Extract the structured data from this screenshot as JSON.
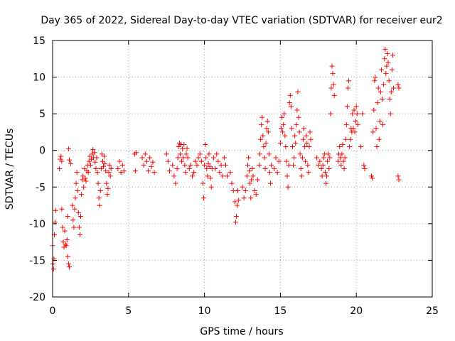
{
  "chart_data": {
    "type": "scatter",
    "title": "Day 365 of 2022, Sidereal Day-to-day VTEC variation (SDTVAR) for receiver eur2",
    "xlabel": "GPS time / hours",
    "ylabel": "SDTVAR / TECUs",
    "xlim": [
      0,
      25
    ],
    "ylim": [
      -20,
      15
    ],
    "x_ticks": [
      0,
      5,
      10,
      15,
      20,
      25
    ],
    "y_ticks": [
      -20,
      -15,
      -10,
      -5,
      0,
      5,
      10,
      15
    ],
    "x_tick_labels": [
      "0",
      "5",
      "10",
      "15",
      "20",
      "25"
    ],
    "y_tick_labels": [
      "-20",
      "-15",
      "-10",
      "-5",
      "0",
      "5",
      "10",
      "15"
    ],
    "grid": true,
    "marker": "+",
    "color": "#ff0000",
    "series": [
      {
        "name": "eur2",
        "points": [
          [
            0.0,
            -13.0
          ],
          [
            0.03,
            -15.5
          ],
          [
            0.06,
            -16.2
          ],
          [
            0.09,
            -14.8
          ],
          [
            0.12,
            -11.5
          ],
          [
            0.16,
            -9.8
          ],
          [
            0.2,
            -8.2
          ],
          [
            0.45,
            -2.5
          ],
          [
            0.5,
            -1.2
          ],
          [
            0.55,
            -0.8
          ],
          [
            0.6,
            -1.5
          ],
          [
            0.6,
            -8.0
          ],
          [
            0.65,
            -10.5
          ],
          [
            0.7,
            -12.5
          ],
          [
            0.75,
            -13.2
          ],
          [
            0.8,
            -11.0
          ],
          [
            0.85,
            -12.8
          ],
          [
            0.9,
            -13.0
          ],
          [
            0.95,
            -12.2
          ],
          [
            1.0,
            -14.5
          ],
          [
            1.05,
            -15.5
          ],
          [
            1.1,
            -15.9
          ],
          [
            1.0,
            -9.0
          ],
          [
            1.05,
            0.2
          ],
          [
            1.1,
            -1.3
          ],
          [
            1.2,
            -1.8
          ],
          [
            1.3,
            -7.5
          ],
          [
            1.35,
            -9.5
          ],
          [
            1.4,
            -10.5
          ],
          [
            1.45,
            -8.0
          ],
          [
            1.5,
            -6.5
          ],
          [
            1.55,
            -4.5
          ],
          [
            1.6,
            -3.0
          ],
          [
            1.65,
            -5.5
          ],
          [
            1.7,
            -8.5
          ],
          [
            1.75,
            -10.5
          ],
          [
            1.8,
            -11.5
          ],
          [
            1.85,
            -9.0
          ],
          [
            1.9,
            -6.0
          ],
          [
            1.95,
            -4.0
          ],
          [
            2.0,
            -3.5
          ],
          [
            2.05,
            -5.0
          ],
          [
            2.1,
            -2.5
          ],
          [
            2.15,
            -3.8
          ],
          [
            2.2,
            -4.2
          ],
          [
            2.25,
            -2.8
          ],
          [
            2.3,
            -2.0
          ],
          [
            2.35,
            -3.0
          ],
          [
            2.4,
            -1.5
          ],
          [
            2.45,
            -0.8
          ],
          [
            2.5,
            -2.0
          ],
          [
            2.55,
            -1.2
          ],
          [
            2.6,
            -0.5
          ],
          [
            2.65,
            0.1
          ],
          [
            2.7,
            -1.0
          ],
          [
            2.75,
            -0.3
          ],
          [
            2.8,
            -1.6
          ],
          [
            2.85,
            -2.5
          ],
          [
            2.9,
            -1.0
          ],
          [
            2.95,
            -3.0
          ],
          [
            3.0,
            -4.5
          ],
          [
            3.05,
            -6.5
          ],
          [
            3.1,
            -7.5
          ],
          [
            3.15,
            -5.5
          ],
          [
            3.2,
            -2.5
          ],
          [
            3.25,
            -0.5
          ],
          [
            3.3,
            -1.5
          ],
          [
            3.35,
            -2.2
          ],
          [
            3.4,
            -0.8
          ],
          [
            3.45,
            -1.8
          ],
          [
            3.5,
            -2.8
          ],
          [
            3.55,
            -4.5
          ],
          [
            3.6,
            -6.0
          ],
          [
            3.65,
            -5.2
          ],
          [
            3.7,
            -3.0
          ],
          [
            3.75,
            -2.0
          ],
          [
            3.8,
            -3.5
          ],
          [
            3.85,
            -2.5
          ],
          [
            4.3,
            -2.5
          ],
          [
            4.4,
            -1.5
          ],
          [
            4.5,
            -3.0
          ],
          [
            4.6,
            -2.0
          ],
          [
            4.7,
            -2.8
          ],
          [
            5.4,
            -0.5
          ],
          [
            5.5,
            -0.3
          ],
          [
            5.45,
            -2.8
          ],
          [
            5.9,
            -1.0
          ],
          [
            6.0,
            -2.0
          ],
          [
            6.1,
            -0.5
          ],
          [
            6.2,
            -1.5
          ],
          [
            6.3,
            -2.8
          ],
          [
            6.4,
            -1.0
          ],
          [
            6.5,
            -2.2
          ],
          [
            6.6,
            -1.6
          ],
          [
            6.7,
            -3.0
          ],
          [
            7.5,
            -0.5
          ],
          [
            7.6,
            -1.5
          ],
          [
            7.7,
            -2.8
          ],
          [
            7.9,
            -2.0
          ],
          [
            8.0,
            -3.5
          ],
          [
            8.1,
            -4.5
          ],
          [
            8.2,
            -2.5
          ],
          [
            8.25,
            -1.0
          ],
          [
            8.3,
            0.5
          ],
          [
            8.35,
            1.0
          ],
          [
            8.4,
            -0.5
          ],
          [
            8.45,
            0.8
          ],
          [
            8.5,
            -1.5
          ],
          [
            8.55,
            0.2
          ],
          [
            8.6,
            -1.0
          ],
          [
            8.65,
            0.8
          ],
          [
            8.7,
            -2.0
          ],
          [
            8.75,
            -3.0
          ],
          [
            8.8,
            -0.5
          ],
          [
            8.85,
            0.3
          ],
          [
            8.9,
            -1.0
          ],
          [
            9.0,
            -2.5
          ],
          [
            9.1,
            -2.0
          ],
          [
            9.2,
            -3.5
          ],
          [
            9.3,
            -3.0
          ],
          [
            9.4,
            -1.5
          ],
          [
            9.5,
            -2.0
          ],
          [
            9.6,
            -1.0
          ],
          [
            9.7,
            -0.5
          ],
          [
            9.8,
            -1.5
          ],
          [
            9.9,
            -4.5
          ],
          [
            9.95,
            -6.5
          ],
          [
            10.0,
            -2.0
          ],
          [
            10.05,
            0.8
          ],
          [
            10.1,
            -1.0
          ],
          [
            10.15,
            -2.5
          ],
          [
            10.2,
            -3.5
          ],
          [
            10.25,
            -1.8
          ],
          [
            10.3,
            -0.5
          ],
          [
            10.35,
            -2.2
          ],
          [
            10.4,
            -3.8
          ],
          [
            10.45,
            -5.0
          ],
          [
            10.5,
            -2.5
          ],
          [
            10.6,
            -1.0
          ],
          [
            10.7,
            -2.5
          ],
          [
            10.8,
            -0.5
          ],
          [
            10.9,
            -1.5
          ],
          [
            11.0,
            -3.0
          ],
          [
            11.1,
            -2.0
          ],
          [
            11.2,
            -3.5
          ],
          [
            11.3,
            -1.0
          ],
          [
            11.4,
            -2.0
          ],
          [
            11.5,
            -3.5
          ],
          [
            11.7,
            -3.0
          ],
          [
            11.8,
            -4.5
          ],
          [
            11.9,
            -5.5
          ],
          [
            12.0,
            -7.0
          ],
          [
            12.05,
            -9.8
          ],
          [
            12.1,
            -9.0
          ],
          [
            12.15,
            -7.5
          ],
          [
            12.2,
            -5.5
          ],
          [
            12.25,
            -6.8
          ],
          [
            12.5,
            -5.0
          ],
          [
            12.6,
            -6.5
          ],
          [
            12.7,
            -5.5
          ],
          [
            12.8,
            -3.5
          ],
          [
            12.85,
            -2.0
          ],
          [
            12.9,
            -1.0
          ],
          [
            12.95,
            -2.8
          ],
          [
            13.0,
            -4.5
          ],
          [
            13.05,
            -6.5
          ],
          [
            13.1,
            -4.0
          ],
          [
            13.15,
            -2.5
          ],
          [
            13.2,
            -3.5
          ],
          [
            13.3,
            -5.5
          ],
          [
            13.4,
            -6.0
          ],
          [
            13.5,
            -4.0
          ],
          [
            13.6,
            -2.0
          ],
          [
            13.65,
            -0.5
          ],
          [
            13.7,
            1.5
          ],
          [
            13.75,
            3.5
          ],
          [
            13.8,
            4.5
          ],
          [
            13.85,
            2.0
          ],
          [
            13.9,
            0.5
          ],
          [
            13.95,
            -1.0
          ],
          [
            14.0,
            -2.5
          ],
          [
            14.05,
            1.0
          ],
          [
            14.1,
            3.0
          ],
          [
            14.15,
            4.0
          ],
          [
            14.2,
            2.5
          ],
          [
            14.25,
            -0.5
          ],
          [
            14.3,
            -3.0
          ],
          [
            14.35,
            -4.5
          ],
          [
            14.4,
            -2.0
          ],
          [
            14.6,
            -2.5
          ],
          [
            14.7,
            -1.0
          ],
          [
            14.8,
            -3.0
          ],
          [
            14.9,
            -1.5
          ],
          [
            15.0,
            1.0
          ],
          [
            15.05,
            3.0
          ],
          [
            15.1,
            4.5
          ],
          [
            15.15,
            2.5
          ],
          [
            15.2,
            3.5
          ],
          [
            15.25,
            5.0
          ],
          [
            15.3,
            2.0
          ],
          [
            15.35,
            0.5
          ],
          [
            15.4,
            -1.5
          ],
          [
            15.45,
            -3.5
          ],
          [
            15.5,
            -5.0
          ],
          [
            15.55,
            -2.0
          ],
          [
            15.6,
            6.5
          ],
          [
            15.65,
            7.5
          ],
          [
            15.7,
            6.0
          ],
          [
            15.75,
            3.0
          ],
          [
            15.8,
            0.5
          ],
          [
            15.85,
            -2.0
          ],
          [
            15.9,
            -1.0
          ],
          [
            15.95,
            2.0
          ],
          [
            16.0,
            1.0
          ],
          [
            16.05,
            3.5
          ],
          [
            16.1,
            5.5
          ],
          [
            16.15,
            8.0
          ],
          [
            16.2,
            4.5
          ],
          [
            16.25,
            2.5
          ],
          [
            16.3,
            -0.5
          ],
          [
            16.35,
            -2.5
          ],
          [
            16.4,
            -3.5
          ],
          [
            16.45,
            -1.0
          ],
          [
            16.5,
            1.5
          ],
          [
            16.55,
            3.0
          ],
          [
            16.6,
            0.5
          ],
          [
            16.65,
            -1.5
          ],
          [
            16.7,
            2.0
          ],
          [
            16.75,
            1.0
          ],
          [
            16.8,
            -2.0
          ],
          [
            16.85,
            -3.0
          ],
          [
            16.9,
            0.5
          ],
          [
            16.95,
            2.5
          ],
          [
            17.0,
            1.5
          ],
          [
            17.4,
            -1.0
          ],
          [
            17.5,
            -2.0
          ],
          [
            17.6,
            -1.5
          ],
          [
            17.7,
            -2.5
          ],
          [
            17.75,
            -3.5
          ],
          [
            17.8,
            -2.0
          ],
          [
            17.85,
            -1.0
          ],
          [
            17.9,
            -0.5
          ],
          [
            17.95,
            -3.0
          ],
          [
            18.0,
            -4.5
          ],
          [
            18.05,
            -3.5
          ],
          [
            18.1,
            -1.5
          ],
          [
            18.15,
            -0.5
          ],
          [
            18.2,
            -2.5
          ],
          [
            18.25,
            -1.0
          ],
          [
            18.3,
            5.0
          ],
          [
            18.35,
            8.5
          ],
          [
            18.4,
            11.5
          ],
          [
            18.45,
            10.5
          ],
          [
            18.5,
            9.0
          ],
          [
            18.55,
            7.5
          ],
          [
            18.8,
            -1.5
          ],
          [
            18.85,
            -0.5
          ],
          [
            18.9,
            0.5
          ],
          [
            18.95,
            -1.0
          ],
          [
            19.0,
            -2.0
          ],
          [
            19.05,
            -0.5
          ],
          [
            19.1,
            0.8
          ],
          [
            19.15,
            -1.5
          ],
          [
            19.2,
            -2.5
          ],
          [
            19.25,
            -1.0
          ],
          [
            19.3,
            1.5
          ],
          [
            19.35,
            3.5
          ],
          [
            19.4,
            6.0
          ],
          [
            19.45,
            8.5
          ],
          [
            19.5,
            9.5
          ],
          [
            19.55,
            0.5
          ],
          [
            19.6,
            1.5
          ],
          [
            19.65,
            3.0
          ],
          [
            19.7,
            2.5
          ],
          [
            19.75,
            5.0
          ],
          [
            19.8,
            3.0
          ],
          [
            19.85,
            5.5
          ],
          [
            19.9,
            2.5
          ],
          [
            19.95,
            4.0
          ],
          [
            20.0,
            6.0
          ],
          [
            20.05,
            5.0
          ],
          [
            20.1,
            3.5
          ],
          [
            20.3,
            0.5
          ],
          [
            20.4,
            5.0
          ],
          [
            20.5,
            -2.0
          ],
          [
            20.55,
            -2.5
          ],
          [
            21.0,
            -3.5
          ],
          [
            21.05,
            -3.8
          ],
          [
            21.1,
            2.5
          ],
          [
            21.15,
            5.5
          ],
          [
            21.2,
            9.5
          ],
          [
            21.25,
            10.0
          ],
          [
            21.3,
            3.0
          ],
          [
            21.35,
            0.5
          ],
          [
            21.4,
            6.5
          ],
          [
            21.45,
            8.5
          ],
          [
            21.5,
            1.5
          ],
          [
            21.55,
            4.0
          ],
          [
            21.6,
            8.0
          ],
          [
            21.65,
            11.0
          ],
          [
            21.7,
            7.0
          ],
          [
            21.75,
            3.5
          ],
          [
            21.8,
            9.0
          ],
          [
            21.85,
            12.5
          ],
          [
            21.9,
            13.8
          ],
          [
            21.95,
            10.5
          ],
          [
            22.0,
            11.5
          ],
          [
            22.05,
            13.2
          ],
          [
            22.1,
            12.0
          ],
          [
            22.15,
            9.5
          ],
          [
            22.2,
            7.0
          ],
          [
            22.25,
            5.0
          ],
          [
            22.3,
            8.0
          ],
          [
            22.35,
            11.0
          ],
          [
            22.4,
            13.0
          ],
          [
            22.45,
            8.5
          ],
          [
            22.75,
            9.0
          ],
          [
            22.8,
            8.5
          ],
          [
            22.75,
            -3.5
          ],
          [
            22.8,
            -4.0
          ]
        ]
      }
    ]
  }
}
